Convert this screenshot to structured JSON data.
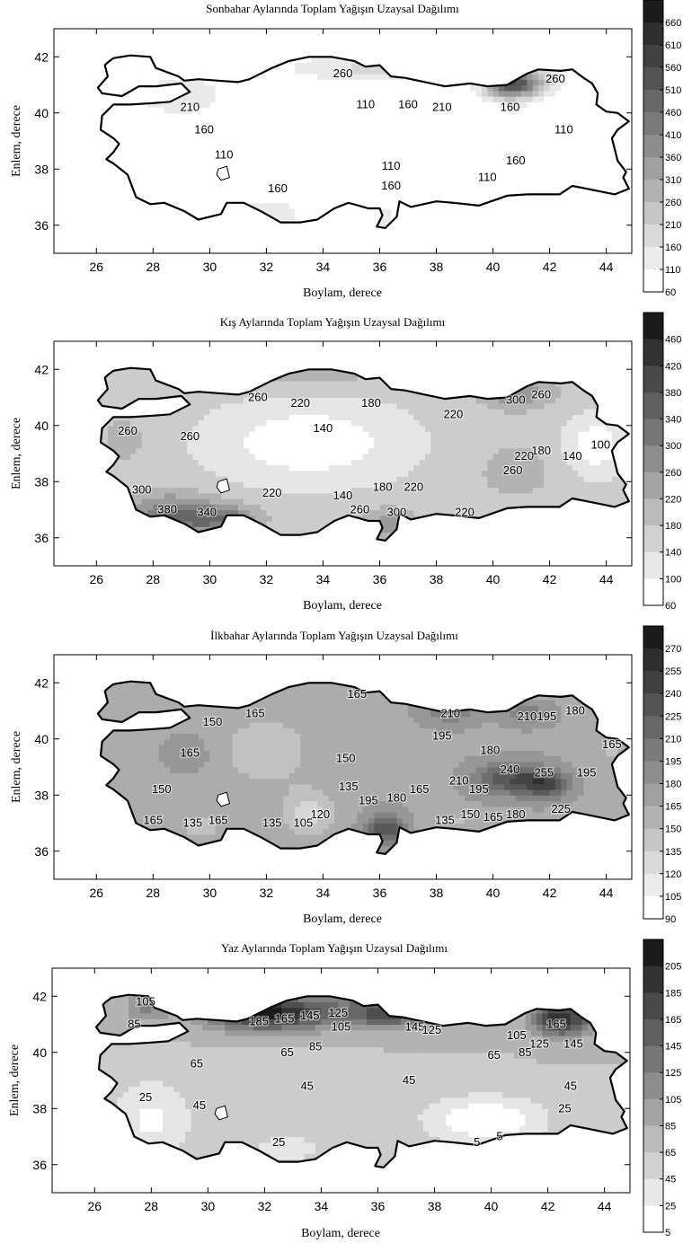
{
  "maps": [
    {
      "id": "autumn",
      "title": "Sonbahar Aylarında Toplam Yağışın Uzaysal Dağılımı",
      "xlabel": "Boylam, derece",
      "ylabel": "Enlem, derece",
      "xticks": [
        "26",
        "28",
        "30",
        "32",
        "34",
        "36",
        "38",
        "40",
        "42",
        "44"
      ],
      "yticks": [
        "42",
        "40",
        "38",
        "36"
      ],
      "colorbar": [
        "660",
        "610",
        "560",
        "510",
        "460",
        "410",
        "360",
        "310",
        "260",
        "210",
        "160",
        "110",
        "60"
      ],
      "contour_labels": [
        {
          "text": "260",
          "lon": 34.7,
          "lat": 41.4
        },
        {
          "text": "210",
          "lon": 29.3,
          "lat": 40.2
        },
        {
          "text": "160",
          "lon": 29.8,
          "lat": 39.4
        },
        {
          "text": "110",
          "lon": 35.5,
          "lat": 40.3
        },
        {
          "text": "160",
          "lon": 37.0,
          "lat": 40.3
        },
        {
          "text": "210",
          "lon": 38.2,
          "lat": 40.2
        },
        {
          "text": "160",
          "lon": 40.6,
          "lat": 40.2
        },
        {
          "text": "260",
          "lon": 42.2,
          "lat": 41.2
        },
        {
          "text": "110",
          "lon": 42.5,
          "lat": 39.4
        },
        {
          "text": "110",
          "lon": 30.5,
          "lat": 38.5
        },
        {
          "text": "110",
          "lon": 36.4,
          "lat": 38.1
        },
        {
          "text": "160",
          "lon": 40.8,
          "lat": 38.3
        },
        {
          "text": "160",
          "lon": 32.4,
          "lat": 37.3
        },
        {
          "text": "160",
          "lon": 36.4,
          "lat": 37.4
        },
        {
          "text": "110",
          "lon": 39.8,
          "lat": 37.7
        }
      ]
    },
    {
      "id": "winter",
      "title": "Kış Aylarında Toplam Yağışın Uzaysal Dağılımı",
      "xlabel": "Boylam, derece",
      "ylabel": "Enlem, derece",
      "xticks": [
        "26",
        "28",
        "30",
        "32",
        "34",
        "36",
        "38",
        "40",
        "42",
        "44"
      ],
      "yticks": [
        "42",
        "40",
        "38",
        "36"
      ],
      "colorbar": [
        "460",
        "420",
        "380",
        "340",
        "300",
        "260",
        "220",
        "180",
        "140",
        "100",
        "60"
      ],
      "contour_labels": [
        {
          "text": "260",
          "lon": 31.7,
          "lat": 41.0
        },
        {
          "text": "220",
          "lon": 33.2,
          "lat": 40.8
        },
        {
          "text": "180",
          "lon": 35.7,
          "lat": 40.8
        },
        {
          "text": "140",
          "lon": 34.0,
          "lat": 39.9
        },
        {
          "text": "220",
          "lon": 38.6,
          "lat": 40.4
        },
        {
          "text": "300",
          "lon": 40.8,
          "lat": 40.9
        },
        {
          "text": "260",
          "lon": 41.7,
          "lat": 41.1
        },
        {
          "text": "260",
          "lon": 27.1,
          "lat": 39.8
        },
        {
          "text": "260",
          "lon": 29.3,
          "lat": 39.6
        },
        {
          "text": "100",
          "lon": 43.8,
          "lat": 39.3
        },
        {
          "text": "180",
          "lon": 41.7,
          "lat": 39.1
        },
        {
          "text": "140",
          "lon": 42.8,
          "lat": 38.9
        },
        {
          "text": "220",
          "lon": 41.1,
          "lat": 38.9
        },
        {
          "text": "260",
          "lon": 40.7,
          "lat": 38.4
        },
        {
          "text": "300",
          "lon": 27.6,
          "lat": 37.7
        },
        {
          "text": "220",
          "lon": 32.2,
          "lat": 37.6
        },
        {
          "text": "140",
          "lon": 34.7,
          "lat": 37.5
        },
        {
          "text": "180",
          "lon": 36.1,
          "lat": 37.8
        },
        {
          "text": "220",
          "lon": 37.2,
          "lat": 37.8
        },
        {
          "text": "380",
          "lon": 28.5,
          "lat": 37.0
        },
        {
          "text": "340",
          "lon": 29.9,
          "lat": 36.9
        },
        {
          "text": "260",
          "lon": 35.3,
          "lat": 37.0
        },
        {
          "text": "300",
          "lon": 36.6,
          "lat": 36.9
        },
        {
          "text": "220",
          "lon": 39.0,
          "lat": 36.9
        }
      ]
    },
    {
      "id": "spring",
      "title": "İlkbahar Aylarında Toplam Yağışın Uzaysal Dağılımı",
      "xlabel": "Boylam, derece",
      "ylabel": "Enlem, derece",
      "xticks": [
        "26",
        "28",
        "30",
        "32",
        "34",
        "36",
        "38",
        "40",
        "42",
        "44"
      ],
      "yticks": [
        "42",
        "40",
        "38",
        "36"
      ],
      "colorbar": [
        "270",
        "255",
        "240",
        "225",
        "210",
        "195",
        "180",
        "165",
        "150",
        "135",
        "120",
        "105",
        "90"
      ],
      "contour_labels": [
        {
          "text": "165",
          "lon": 35.2,
          "lat": 41.6
        },
        {
          "text": "165",
          "lon": 31.6,
          "lat": 40.9
        },
        {
          "text": "150",
          "lon": 30.1,
          "lat": 40.6
        },
        {
          "text": "210",
          "lon": 38.5,
          "lat": 40.9
        },
        {
          "text": "195",
          "lon": 38.2,
          "lat": 40.1
        },
        {
          "text": "210",
          "lon": 41.2,
          "lat": 40.8
        },
        {
          "text": "195",
          "lon": 41.9,
          "lat": 40.8
        },
        {
          "text": "180",
          "lon": 42.9,
          "lat": 41.0
        },
        {
          "text": "165",
          "lon": 44.2,
          "lat": 39.8
        },
        {
          "text": "165",
          "lon": 29.3,
          "lat": 39.5
        },
        {
          "text": "180",
          "lon": 39.9,
          "lat": 39.6
        },
        {
          "text": "150",
          "lon": 34.8,
          "lat": 39.3
        },
        {
          "text": "240",
          "lon": 40.6,
          "lat": 38.9
        },
        {
          "text": "255",
          "lon": 41.8,
          "lat": 38.8
        },
        {
          "text": "195",
          "lon": 43.3,
          "lat": 38.8
        },
        {
          "text": "210",
          "lon": 38.8,
          "lat": 38.5
        },
        {
          "text": "195",
          "lon": 39.5,
          "lat": 38.2
        },
        {
          "text": "150",
          "lon": 28.3,
          "lat": 38.2
        },
        {
          "text": "135",
          "lon": 34.9,
          "lat": 38.3
        },
        {
          "text": "165",
          "lon": 37.4,
          "lat": 38.2
        },
        {
          "text": "195",
          "lon": 35.6,
          "lat": 37.8
        },
        {
          "text": "180",
          "lon": 36.6,
          "lat": 37.9
        },
        {
          "text": "225",
          "lon": 42.4,
          "lat": 37.5
        },
        {
          "text": "120",
          "lon": 33.9,
          "lat": 37.3
        },
        {
          "text": "105",
          "lon": 33.3,
          "lat": 37.0
        },
        {
          "text": "135",
          "lon": 32.2,
          "lat": 37.0
        },
        {
          "text": "165",
          "lon": 28.0,
          "lat": 37.1
        },
        {
          "text": "135",
          "lon": 29.4,
          "lat": 37.0
        },
        {
          "text": "165",
          "lon": 30.3,
          "lat": 37.1
        },
        {
          "text": "135",
          "lon": 38.3,
          "lat": 37.1
        },
        {
          "text": "150",
          "lon": 39.2,
          "lat": 37.3
        },
        {
          "text": "165",
          "lon": 40.0,
          "lat": 37.2
        },
        {
          "text": "180",
          "lon": 40.8,
          "lat": 37.3
        }
      ]
    },
    {
      "id": "summer",
      "title": "Yaz Aylarında Toplam Yağışın Uzaysal Dağılımı",
      "xlabel": "Boylam, derece",
      "ylabel": "Enlem, derece",
      "xticks": [
        "26",
        "28",
        "30",
        "32",
        "34",
        "36",
        "38",
        "40",
        "42",
        "44"
      ],
      "yticks": [
        "42",
        "40",
        "38",
        "36"
      ],
      "colorbar": [
        "205",
        "185",
        "165",
        "145",
        "125",
        "105",
        "85",
        "65",
        "45",
        "25",
        "5"
      ],
      "contour_labels": [
        {
          "text": "105",
          "lon": 27.8,
          "lat": 41.8
        },
        {
          "text": "85",
          "lon": 27.4,
          "lat": 41.0
        },
        {
          "text": "185",
          "lon": 31.8,
          "lat": 41.1
        },
        {
          "text": "165",
          "lon": 32.7,
          "lat": 41.2
        },
        {
          "text": "145",
          "lon": 33.6,
          "lat": 41.3
        },
        {
          "text": "125",
          "lon": 34.6,
          "lat": 41.4
        },
        {
          "text": "105",
          "lon": 34.7,
          "lat": 40.9
        },
        {
          "text": "85",
          "lon": 33.8,
          "lat": 40.2
        },
        {
          "text": "145",
          "lon": 37.3,
          "lat": 40.9
        },
        {
          "text": "125",
          "lon": 37.9,
          "lat": 40.8
        },
        {
          "text": "165",
          "lon": 42.3,
          "lat": 41.0
        },
        {
          "text": "105",
          "lon": 40.9,
          "lat": 40.6
        },
        {
          "text": "125",
          "lon": 41.7,
          "lat": 40.3
        },
        {
          "text": "145",
          "lon": 42.9,
          "lat": 40.3
        },
        {
          "text": "65",
          "lon": 29.6,
          "lat": 39.6
        },
        {
          "text": "65",
          "lon": 32.8,
          "lat": 40.0
        },
        {
          "text": "65",
          "lon": 40.1,
          "lat": 39.9
        },
        {
          "text": "85",
          "lon": 41.2,
          "lat": 40.0
        },
        {
          "text": "45",
          "lon": 33.5,
          "lat": 38.8
        },
        {
          "text": "45",
          "lon": 37.1,
          "lat": 39.0
        },
        {
          "text": "45",
          "lon": 42.8,
          "lat": 38.8
        },
        {
          "text": "25",
          "lon": 27.8,
          "lat": 38.4
        },
        {
          "text": "45",
          "lon": 29.7,
          "lat": 38.1
        },
        {
          "text": "25",
          "lon": 32.5,
          "lat": 36.8
        },
        {
          "text": "25",
          "lon": 42.6,
          "lat": 38.0
        },
        {
          "text": "5",
          "lon": 39.5,
          "lat": 36.8
        },
        {
          "text": "5",
          "lon": 40.3,
          "lat": 37.0
        }
      ]
    }
  ]
}
